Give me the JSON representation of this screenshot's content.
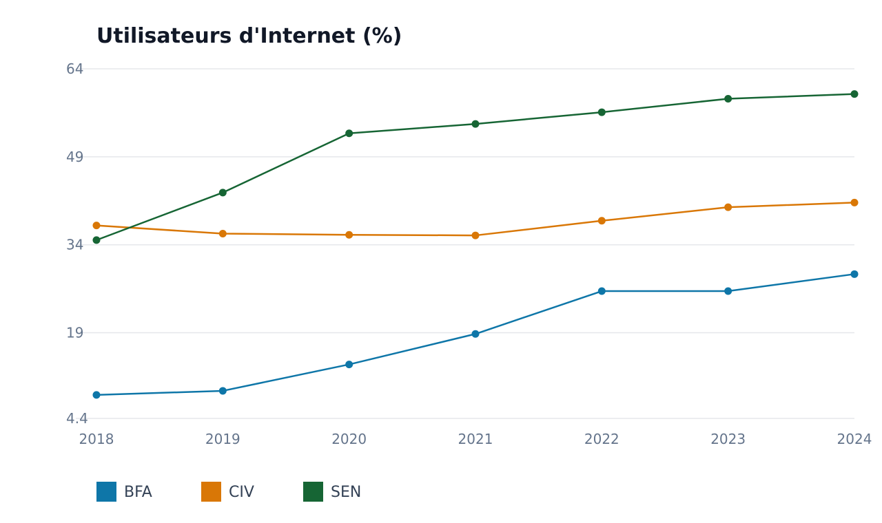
{
  "chart_data": {
    "type": "line",
    "title": "Utilisateurs d'Internet (%)",
    "xlabel": "",
    "ylabel": "",
    "x": [
      "2018",
      "2019",
      "2020",
      "2021",
      "2022",
      "2023",
      "2024"
    ],
    "y_ticks": [
      "64",
      "49",
      "34",
      "19",
      "4.4"
    ],
    "y_tick_values": [
      64,
      49,
      34,
      19,
      4.4
    ],
    "ylim": [
      4.4,
      64
    ],
    "grid": true,
    "legend_position": "bottom-left",
    "series": [
      {
        "name": "BFA",
        "color": "#0e76a8",
        "values": [
          8.4,
          9.1,
          13.6,
          18.8,
          26.1,
          26.1,
          29.0
        ]
      },
      {
        "name": "CIV",
        "color": "#d97706",
        "values": [
          37.3,
          35.9,
          35.7,
          35.6,
          38.1,
          40.4,
          41.2
        ]
      },
      {
        "name": "SEN",
        "color": "#166534",
        "values": [
          34.8,
          42.9,
          53.0,
          54.6,
          56.6,
          58.9,
          59.7
        ]
      }
    ]
  }
}
